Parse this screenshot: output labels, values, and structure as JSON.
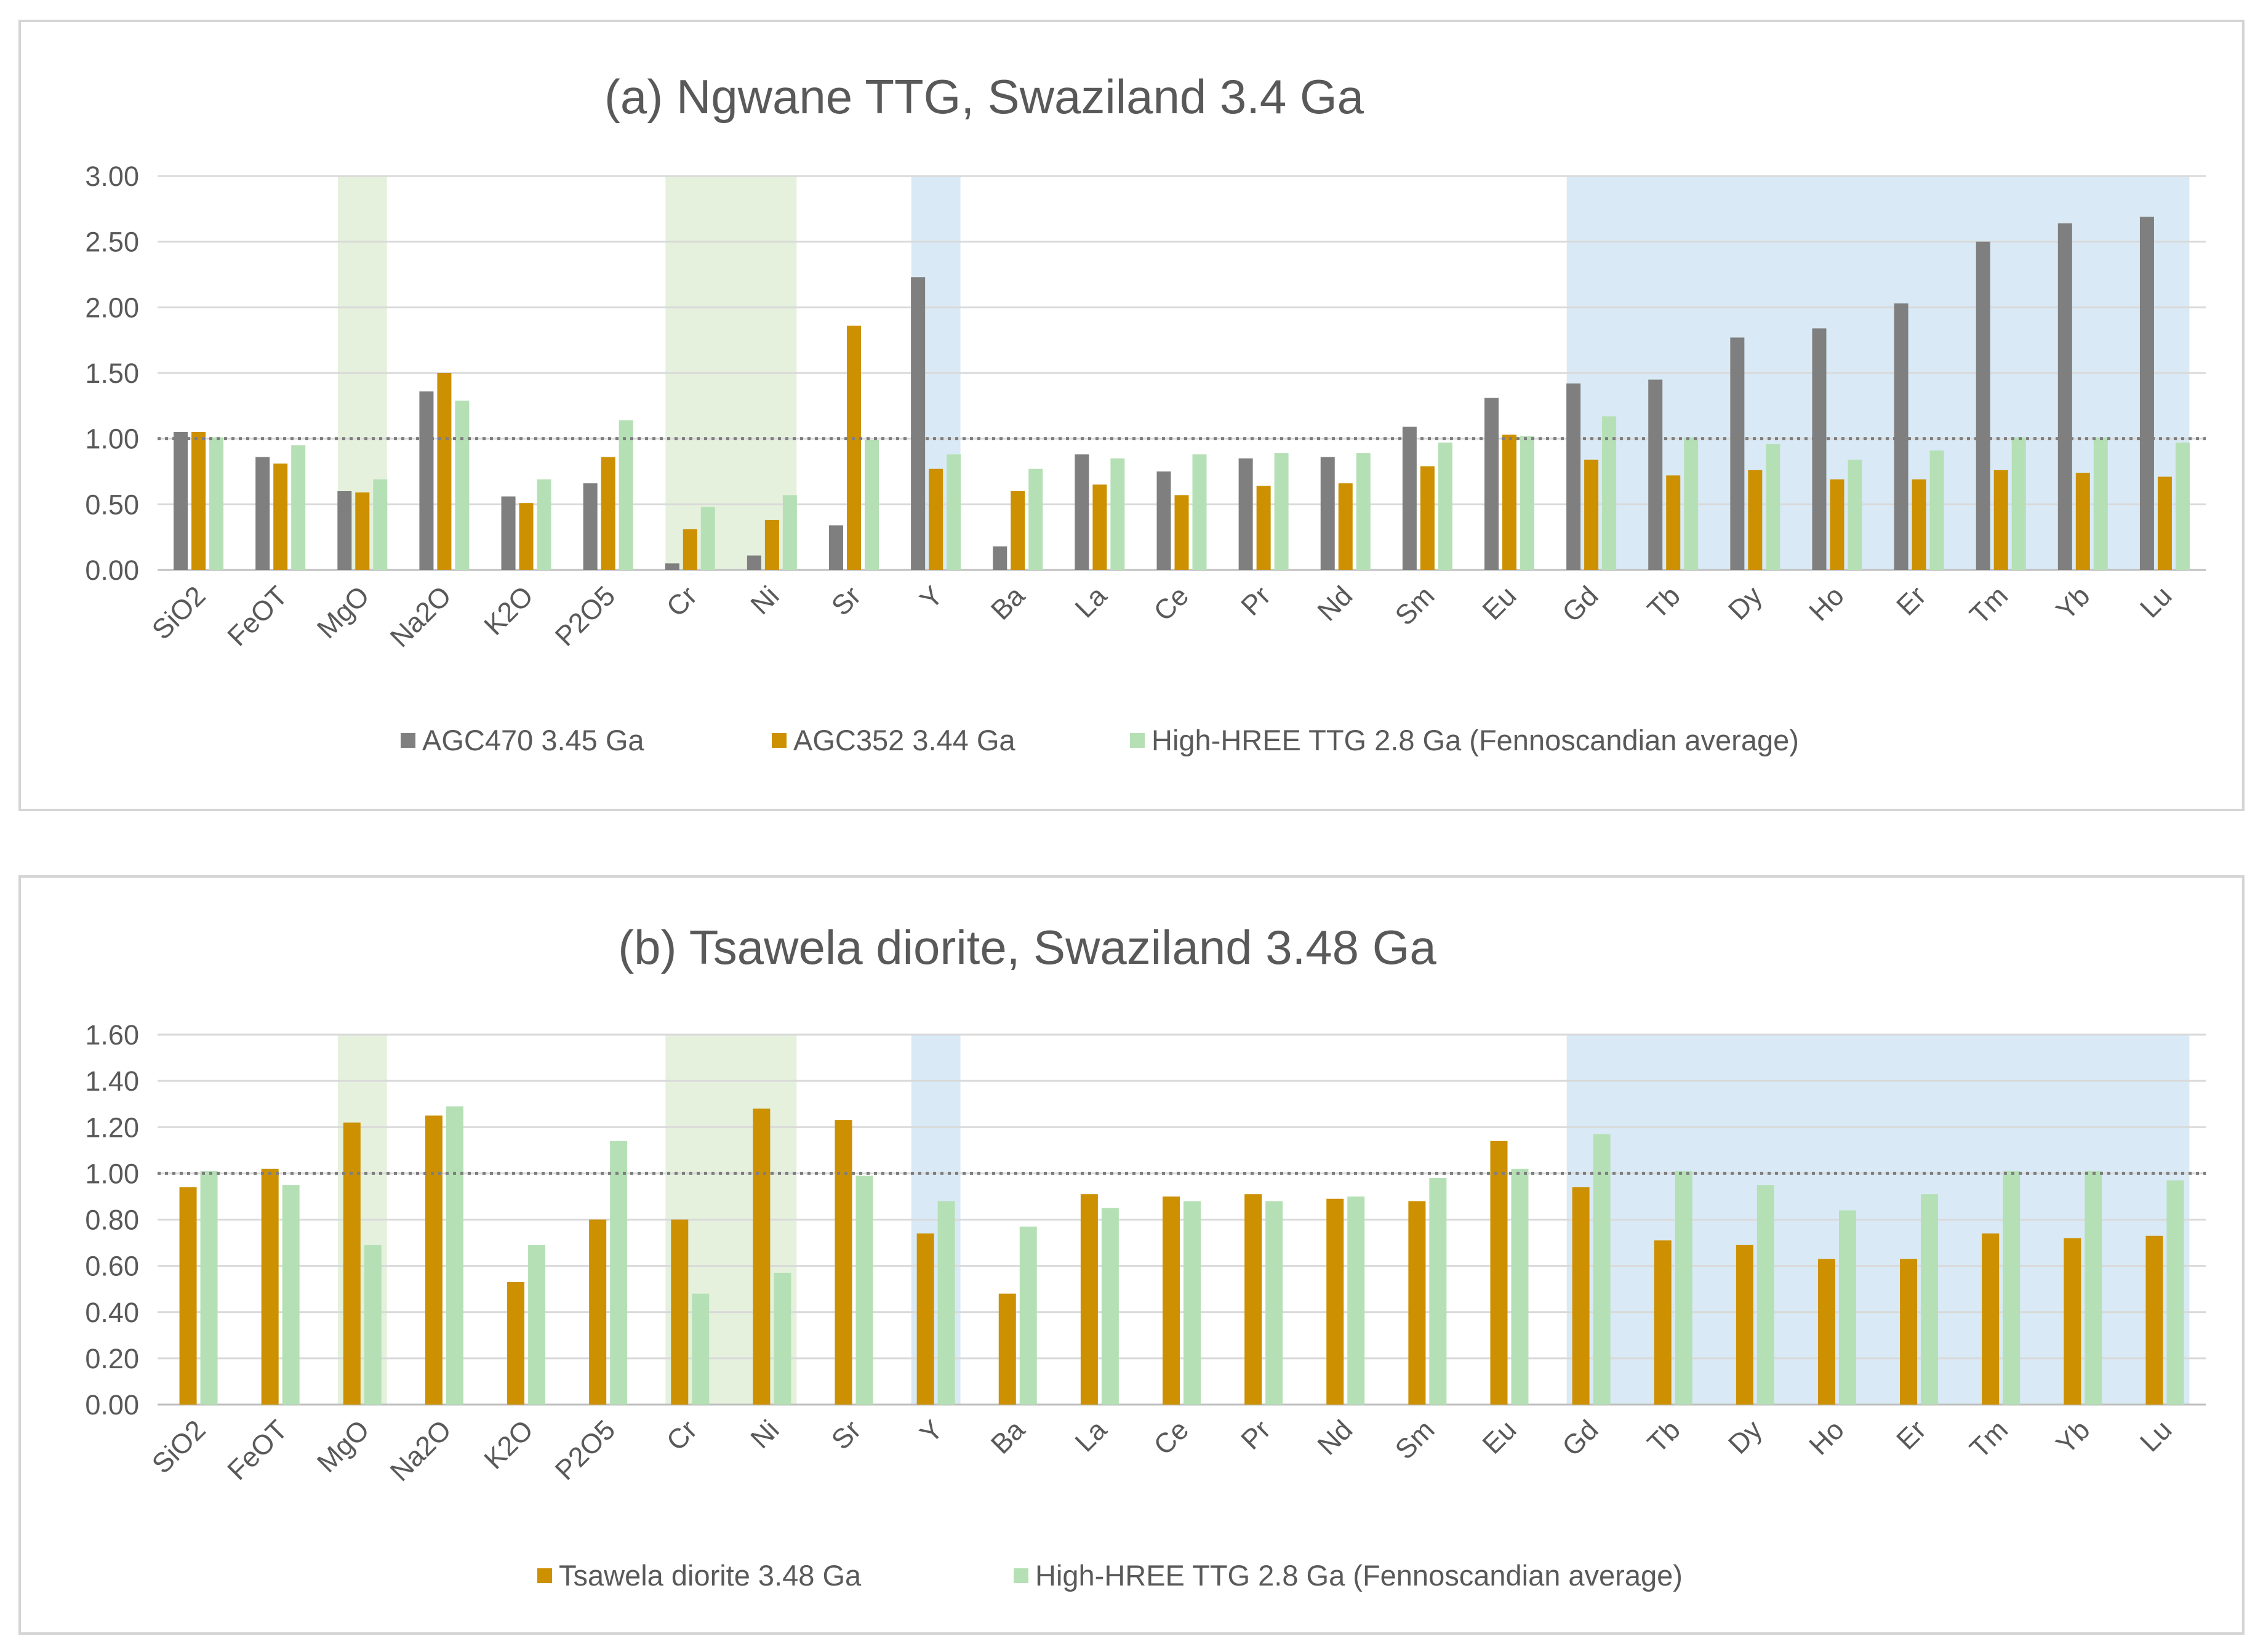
{
  "colors": {
    "agc470": "#7f7f7f",
    "tsawela": "#cc9000",
    "fenno": "#b5e0b5",
    "green_band": "#e2f0d9",
    "blue_band": "#d5e8f5",
    "grid": "#d9d9d9",
    "axis_text": "#595959"
  },
  "chart_data": [
    {
      "id": "a",
      "type": "bar",
      "title": "(a) Ngwane TTG, Swaziland 3.4 Ga",
      "xlabel": "",
      "ylabel": "",
      "ylim": [
        0,
        3.0
      ],
      "yticks": [
        "0.00",
        "0.50",
        "1.00",
        "1.50",
        "2.00",
        "2.50",
        "3.00"
      ],
      "reference_line": 1.0,
      "categories": [
        "SiO2",
        "FeOT",
        "MgO",
        "Na2O",
        "K2O",
        "P2O5",
        "Cr",
        "Ni",
        "Sr",
        "Y",
        "Ba",
        "La",
        "Ce",
        "Pr",
        "Nd",
        "Sm",
        "Eu",
        "Gd",
        "Tb",
        "Dy",
        "Ho",
        "Er",
        "Tm",
        "Yb",
        "Lu"
      ],
      "highlight_bands": [
        {
          "from": "MgO",
          "to": "MgO",
          "color": "green"
        },
        {
          "from": "Cr",
          "to": "Ni",
          "color": "green"
        },
        {
          "from": "Y",
          "to": "Y",
          "color": "blue"
        },
        {
          "from": "Gd",
          "to": "Lu",
          "color": "blue"
        }
      ],
      "series": [
        {
          "name": "AGC470 3.45 Ga",
          "color_key": "agc470",
          "values": [
            1.05,
            0.86,
            0.6,
            1.36,
            0.56,
            0.66,
            0.05,
            0.11,
            0.34,
            2.23,
            0.18,
            0.88,
            0.75,
            0.85,
            0.86,
            1.09,
            1.31,
            1.42,
            1.45,
            1.77,
            1.84,
            2.03,
            2.5,
            2.64,
            2.69
          ]
        },
        {
          "name": "AGC352 3.44 Ga",
          "color_key": "tsawela",
          "values": [
            1.05,
            0.81,
            0.59,
            1.5,
            0.51,
            0.86,
            0.31,
            0.38,
            1.86,
            0.77,
            0.6,
            0.65,
            0.57,
            0.64,
            0.66,
            0.79,
            1.03,
            0.84,
            0.72,
            0.76,
            0.69,
            0.69,
            0.76,
            0.74,
            0.71
          ]
        },
        {
          "name": "High-HREE TTG 2.8 Ga (Fennoscandian average)",
          "color_key": "fenno",
          "values": [
            1.01,
            0.95,
            0.69,
            1.29,
            0.69,
            1.14,
            0.48,
            0.57,
            0.99,
            0.88,
            0.77,
            0.85,
            0.88,
            0.89,
            0.89,
            0.97,
            1.02,
            1.17,
            1.01,
            0.96,
            0.84,
            0.91,
            1.01,
            1.01,
            0.97
          ]
        }
      ]
    },
    {
      "id": "b",
      "type": "bar",
      "title": "(b) Tsawela diorite, Swaziland 3.48 Ga",
      "xlabel": "",
      "ylabel": "",
      "ylim": [
        0,
        1.6
      ],
      "yticks": [
        "0.00",
        "0.20",
        "0.40",
        "0.60",
        "0.80",
        "1.00",
        "1.20",
        "1.40",
        "1.60"
      ],
      "reference_line": 1.0,
      "categories": [
        "SiO2",
        "FeOT",
        "MgO",
        "Na2O",
        "K2O",
        "P2O5",
        "Cr",
        "Ni",
        "Sr",
        "Y",
        "Ba",
        "La",
        "Ce",
        "Pr",
        "Nd",
        "Sm",
        "Eu",
        "Gd",
        "Tb",
        "Dy",
        "Ho",
        "Er",
        "Tm",
        "Yb",
        "Lu"
      ],
      "highlight_bands": [
        {
          "from": "MgO",
          "to": "MgO",
          "color": "green"
        },
        {
          "from": "Cr",
          "to": "Ni",
          "color": "green"
        },
        {
          "from": "Y",
          "to": "Y",
          "color": "blue"
        },
        {
          "from": "Gd",
          "to": "Lu",
          "color": "blue"
        }
      ],
      "series": [
        {
          "name": "Tsawela diorite 3.48 Ga",
          "color_key": "tsawela",
          "values": [
            0.94,
            1.02,
            1.22,
            1.25,
            0.53,
            0.8,
            0.8,
            1.28,
            1.23,
            0.74,
            0.48,
            0.91,
            0.9,
            0.91,
            0.89,
            0.88,
            1.14,
            0.94,
            0.71,
            0.69,
            0.63,
            0.63,
            0.74,
            0.72,
            0.73
          ]
        },
        {
          "name": "High-HREE TTG 2.8 Ga (Fennoscandian average)",
          "color_key": "fenno",
          "values": [
            1.01,
            0.95,
            0.69,
            1.29,
            0.69,
            1.14,
            0.48,
            0.57,
            0.99,
            0.88,
            0.77,
            0.85,
            0.88,
            0.88,
            0.9,
            0.98,
            1.02,
            1.17,
            1.01,
            0.95,
            0.84,
            0.91,
            1.01,
            1.01,
            0.97
          ]
        }
      ]
    }
  ]
}
